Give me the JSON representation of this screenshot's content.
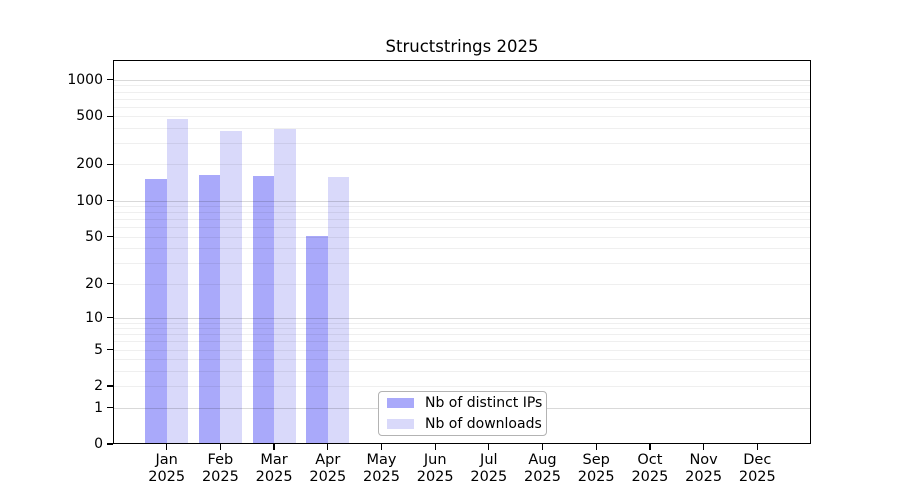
{
  "figure": {
    "title": "Structstrings 2025"
  },
  "chart_data": {
    "type": "bar",
    "title": "Structstrings 2025",
    "categories": [
      "Jan 2025",
      "Feb 2025",
      "Mar 2025",
      "Apr 2025",
      "May 2025",
      "Jun 2025",
      "Jul 2025",
      "Aug 2025",
      "Sep 2025",
      "Oct 2025",
      "Nov 2025",
      "Dec 2025"
    ],
    "series": [
      {
        "name": "Nb of distinct IPs",
        "color": "#a9a9fa",
        "values": [
          152,
          162,
          159,
          51,
          null,
          null,
          null,
          null,
          null,
          null,
          null,
          null
        ]
      },
      {
        "name": "Nb of downloads",
        "color": "#d9d9fa",
        "values": [
          475,
          375,
          395,
          156,
          null,
          null,
          null,
          null,
          null,
          null,
          null,
          null
        ]
      }
    ],
    "xlabel": "",
    "ylabel": "",
    "yscale": "log1p",
    "y_ticks": [
      0,
      1,
      2,
      5,
      10,
      20,
      50,
      100,
      200,
      500,
      1000
    ],
    "ylim": [
      0,
      1455
    ],
    "grid": "horizontal-major-and-minor",
    "legend_position": "inside-bottom-left-of-center",
    "axis_color": "#000000",
    "grid_major_color": "#d9d9d9",
    "grid_minor_color": "#efefef"
  }
}
